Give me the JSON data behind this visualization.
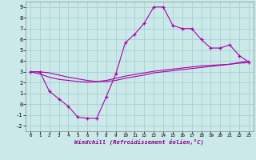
{
  "xlabel": "Windchill (Refroidissement éolien,°C)",
  "background_color": "#cce9e9",
  "grid_color": "#aad4d4",
  "line_color": "#aa00aa",
  "xlim": [
    -0.5,
    23.5
  ],
  "ylim": [
    -2.5,
    9.5
  ],
  "xticks": [
    0,
    1,
    2,
    3,
    4,
    5,
    6,
    7,
    8,
    9,
    10,
    11,
    12,
    13,
    14,
    15,
    16,
    17,
    18,
    19,
    20,
    21,
    22,
    23
  ],
  "yticks": [
    -2,
    -1,
    0,
    1,
    2,
    3,
    4,
    5,
    6,
    7,
    8,
    9
  ],
  "hours": [
    0,
    1,
    2,
    3,
    4,
    5,
    6,
    7,
    8,
    9,
    10,
    11,
    12,
    13,
    14,
    15,
    16,
    17,
    18,
    19,
    20,
    21,
    22,
    23
  ],
  "temp_main": [
    3,
    3,
    1.2,
    0.5,
    -0.2,
    -1.2,
    -1.3,
    -1.3,
    0.7,
    2.8,
    5.7,
    6.5,
    7.5,
    9.0,
    9.0,
    7.3,
    7.0,
    7.0,
    6.0,
    5.2,
    5.2,
    5.5,
    4.5,
    3.9
  ],
  "temp_line2": [
    3.0,
    2.8,
    2.5,
    2.3,
    2.2,
    2.1,
    2.05,
    2.1,
    2.2,
    2.4,
    2.6,
    2.75,
    2.9,
    3.05,
    3.15,
    3.25,
    3.35,
    3.45,
    3.55,
    3.6,
    3.65,
    3.7,
    3.8,
    3.85
  ],
  "temp_line3": [
    3.0,
    3.0,
    2.9,
    2.7,
    2.5,
    2.35,
    2.2,
    2.1,
    2.1,
    2.2,
    2.4,
    2.55,
    2.7,
    2.9,
    3.0,
    3.1,
    3.2,
    3.3,
    3.4,
    3.5,
    3.6,
    3.7,
    3.85,
    4.0
  ]
}
